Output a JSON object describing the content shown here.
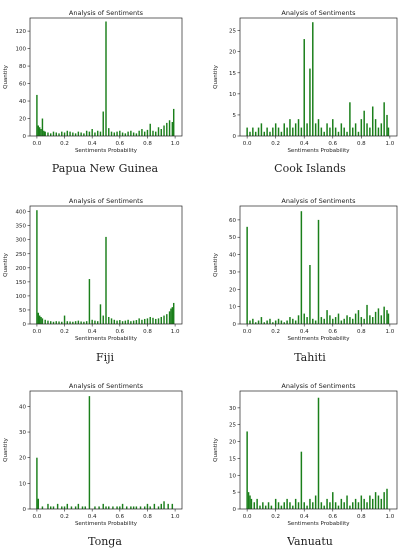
{
  "chart_data": [
    {
      "type": "bar",
      "title": "Analysis of Sentiments",
      "xlabel": "Sentiments Probability",
      "ylabel": "Quantity",
      "caption": "Papua New Guinea",
      "xlim": [
        0,
        1
      ],
      "ylim": [
        0,
        135
      ],
      "xticks": [
        "0.0",
        "0.2",
        "0.4",
        "0.6",
        "0.8",
        "1.0"
      ],
      "yticks": [
        0,
        20,
        40,
        60,
        80,
        100,
        120
      ],
      "color": "#1a7f1a",
      "x": [
        0.0,
        0.01,
        0.02,
        0.03,
        0.04,
        0.05,
        0.06,
        0.08,
        0.1,
        0.12,
        0.14,
        0.16,
        0.18,
        0.2,
        0.22,
        0.24,
        0.26,
        0.28,
        0.3,
        0.32,
        0.34,
        0.36,
        0.38,
        0.4,
        0.42,
        0.44,
        0.46,
        0.48,
        0.5,
        0.52,
        0.54,
        0.56,
        0.58,
        0.6,
        0.62,
        0.64,
        0.66,
        0.68,
        0.7,
        0.72,
        0.74,
        0.76,
        0.78,
        0.8,
        0.82,
        0.84,
        0.86,
        0.88,
        0.9,
        0.92,
        0.94,
        0.96,
        0.98,
        0.99
      ],
      "y": [
        47,
        12,
        10,
        8,
        20,
        6,
        5,
        4,
        3,
        5,
        4,
        3,
        5,
        4,
        6,
        5,
        4,
        3,
        5,
        4,
        3,
        6,
        5,
        8,
        4,
        6,
        5,
        28,
        131,
        9,
        5,
        4,
        5,
        6,
        4,
        3,
        5,
        6,
        4,
        3,
        6,
        8,
        5,
        7,
        14,
        6,
        5,
        10,
        8,
        12,
        15,
        18,
        16,
        31
      ]
    },
    {
      "type": "bar",
      "title": "Analysis of Sentiments",
      "xlabel": "Sentiments Probability",
      "ylabel": "Quantity",
      "caption": "Cook Islands",
      "xlim": [
        0,
        1
      ],
      "ylim": [
        0,
        28
      ],
      "xticks": [
        "0.0",
        "0.2",
        "0.4",
        "0.6",
        "0.8",
        "1.0"
      ],
      "yticks": [
        0,
        5,
        10,
        15,
        20,
        25
      ],
      "color": "#1a7f1a",
      "x": [
        0.0,
        0.02,
        0.04,
        0.06,
        0.08,
        0.1,
        0.12,
        0.14,
        0.16,
        0.18,
        0.2,
        0.22,
        0.24,
        0.26,
        0.28,
        0.3,
        0.32,
        0.34,
        0.36,
        0.38,
        0.4,
        0.42,
        0.44,
        0.46,
        0.48,
        0.5,
        0.52,
        0.54,
        0.56,
        0.58,
        0.6,
        0.62,
        0.64,
        0.66,
        0.68,
        0.7,
        0.72,
        0.74,
        0.76,
        0.78,
        0.8,
        0.82,
        0.84,
        0.86,
        0.88,
        0.9,
        0.92,
        0.94,
        0.96,
        0.98,
        0.99
      ],
      "y": [
        2,
        1,
        2,
        1,
        2,
        3,
        1,
        2,
        1,
        2,
        3,
        2,
        1,
        3,
        2,
        4,
        2,
        3,
        4,
        2,
        23,
        3,
        16,
        27,
        3,
        4,
        2,
        1,
        3,
        2,
        4,
        2,
        1,
        3,
        2,
        1,
        8,
        2,
        3,
        1,
        4,
        6,
        3,
        2,
        7,
        4,
        2,
        3,
        8,
        5,
        2
      ]
    },
    {
      "type": "bar",
      "title": "Analysis of Sentiments",
      "xlabel": "Sentiments Probability",
      "ylabel": "Quantity",
      "caption": "Fiji",
      "xlim": [
        0,
        1
      ],
      "ylim": [
        0,
        420
      ],
      "xticks": [
        "0.0",
        "0.2",
        "0.4",
        "0.6",
        "0.8",
        "1.0"
      ],
      "yticks": [
        0,
        50,
        100,
        150,
        200,
        250,
        300,
        350,
        400
      ],
      "color": "#1a7f1a",
      "x": [
        0.0,
        0.01,
        0.02,
        0.03,
        0.04,
        0.06,
        0.08,
        0.1,
        0.12,
        0.14,
        0.16,
        0.18,
        0.2,
        0.22,
        0.24,
        0.26,
        0.28,
        0.3,
        0.32,
        0.34,
        0.36,
        0.38,
        0.4,
        0.42,
        0.44,
        0.46,
        0.48,
        0.5,
        0.52,
        0.54,
        0.56,
        0.58,
        0.6,
        0.62,
        0.64,
        0.66,
        0.68,
        0.7,
        0.72,
        0.74,
        0.76,
        0.78,
        0.8,
        0.82,
        0.84,
        0.86,
        0.88,
        0.9,
        0.92,
        0.94,
        0.96,
        0.97,
        0.98,
        0.99
      ],
      "y": [
        405,
        40,
        30,
        25,
        20,
        15,
        12,
        10,
        8,
        10,
        9,
        8,
        30,
        10,
        9,
        8,
        10,
        12,
        9,
        8,
        10,
        160,
        15,
        12,
        10,
        70,
        30,
        310,
        25,
        20,
        15,
        12,
        14,
        10,
        12,
        15,
        10,
        12,
        14,
        20,
        15,
        18,
        20,
        25,
        22,
        18,
        20,
        25,
        30,
        35,
        45,
        55,
        60,
        75
      ]
    },
    {
      "type": "bar",
      "title": "Analysis of Sentiments",
      "xlabel": "Sentiments Probability",
      "ylabel": "Quantity",
      "caption": "Tahiti",
      "xlim": [
        0,
        1
      ],
      "ylim": [
        0,
        68
      ],
      "xticks": [
        "0.0",
        "0.2",
        "0.4",
        "0.6",
        "0.8",
        "1.0"
      ],
      "yticks": [
        0,
        10,
        20,
        30,
        40,
        50,
        60
      ],
      "color": "#1a7f1a",
      "x": [
        0.0,
        0.02,
        0.04,
        0.06,
        0.08,
        0.1,
        0.12,
        0.14,
        0.16,
        0.18,
        0.2,
        0.22,
        0.24,
        0.26,
        0.28,
        0.3,
        0.32,
        0.34,
        0.36,
        0.38,
        0.4,
        0.42,
        0.44,
        0.46,
        0.48,
        0.5,
        0.52,
        0.54,
        0.56,
        0.58,
        0.6,
        0.62,
        0.64,
        0.66,
        0.68,
        0.7,
        0.72,
        0.74,
        0.76,
        0.78,
        0.8,
        0.82,
        0.84,
        0.86,
        0.88,
        0.9,
        0.92,
        0.94,
        0.96,
        0.98,
        0.99
      ],
      "y": [
        56,
        2,
        3,
        1,
        2,
        4,
        1,
        2,
        3,
        1,
        2,
        3,
        2,
        1,
        2,
        4,
        3,
        2,
        5,
        65,
        6,
        4,
        34,
        3,
        2,
        60,
        4,
        3,
        8,
        5,
        3,
        4,
        6,
        2,
        3,
        5,
        4,
        3,
        6,
        8,
        4,
        3,
        11,
        5,
        4,
        7,
        9,
        5,
        10,
        8,
        6
      ]
    },
    {
      "type": "bar",
      "title": "Analysis of Sentiments",
      "xlabel": "Sentiments Probability",
      "ylabel": "Quantity",
      "caption": "Tonga",
      "xlim": [
        0,
        1
      ],
      "ylim": [
        0,
        46
      ],
      "xticks": [
        "0.0",
        "0.2",
        "0.4",
        "0.6",
        "0.8",
        "1.0"
      ],
      "yticks": [
        0,
        10,
        20,
        30,
        40
      ],
      "color": "#1a7f1a",
      "x": [
        0.0,
        0.01,
        0.04,
        0.08,
        0.1,
        0.12,
        0.15,
        0.18,
        0.2,
        0.22,
        0.25,
        0.28,
        0.3,
        0.33,
        0.35,
        0.38,
        0.42,
        0.45,
        0.48,
        0.5,
        0.52,
        0.55,
        0.58,
        0.6,
        0.62,
        0.65,
        0.68,
        0.7,
        0.72,
        0.75,
        0.78,
        0.8,
        0.82,
        0.85,
        0.88,
        0.9,
        0.92,
        0.95,
        0.98
      ],
      "y": [
        20,
        4,
        1,
        2,
        1,
        1,
        2,
        1,
        1,
        2,
        1,
        1,
        2,
        1,
        1,
        44,
        1,
        1,
        2,
        1,
        1,
        1,
        1,
        1,
        2,
        1,
        1,
        1,
        1,
        1,
        1,
        2,
        1,
        2,
        1,
        2,
        3,
        2,
        2
      ]
    },
    {
      "type": "bar",
      "title": "Analysis of Sentiments",
      "xlabel": "Sentiments Probability",
      "ylabel": "Quantity",
      "caption": "Vanuatu",
      "xlim": [
        0,
        1
      ],
      "ylim": [
        0,
        35
      ],
      "xticks": [
        "0.0",
        "0.2",
        "0.4",
        "0.6",
        "0.8",
        "1.0"
      ],
      "yticks": [
        0,
        5,
        10,
        15,
        20,
        25,
        30
      ],
      "color": "#1a7f1a",
      "x": [
        0.0,
        0.01,
        0.02,
        0.03,
        0.05,
        0.07,
        0.09,
        0.11,
        0.13,
        0.15,
        0.17,
        0.2,
        0.22,
        0.24,
        0.26,
        0.28,
        0.3,
        0.32,
        0.34,
        0.36,
        0.38,
        0.4,
        0.42,
        0.44,
        0.46,
        0.48,
        0.5,
        0.52,
        0.54,
        0.56,
        0.58,
        0.6,
        0.62,
        0.64,
        0.66,
        0.68,
        0.7,
        0.72,
        0.74,
        0.76,
        0.78,
        0.8,
        0.82,
        0.84,
        0.86,
        0.88,
        0.9,
        0.92,
        0.94,
        0.96,
        0.98
      ],
      "y": [
        23,
        5,
        4,
        3,
        2,
        3,
        1,
        2,
        1,
        2,
        1,
        3,
        2,
        1,
        2,
        3,
        2,
        1,
        3,
        2,
        17,
        2,
        1,
        3,
        2,
        4,
        33,
        2,
        1,
        3,
        2,
        5,
        2,
        1,
        3,
        2,
        4,
        1,
        2,
        3,
        2,
        4,
        3,
        2,
        4,
        3,
        5,
        4,
        3,
        5,
        6
      ]
    }
  ]
}
